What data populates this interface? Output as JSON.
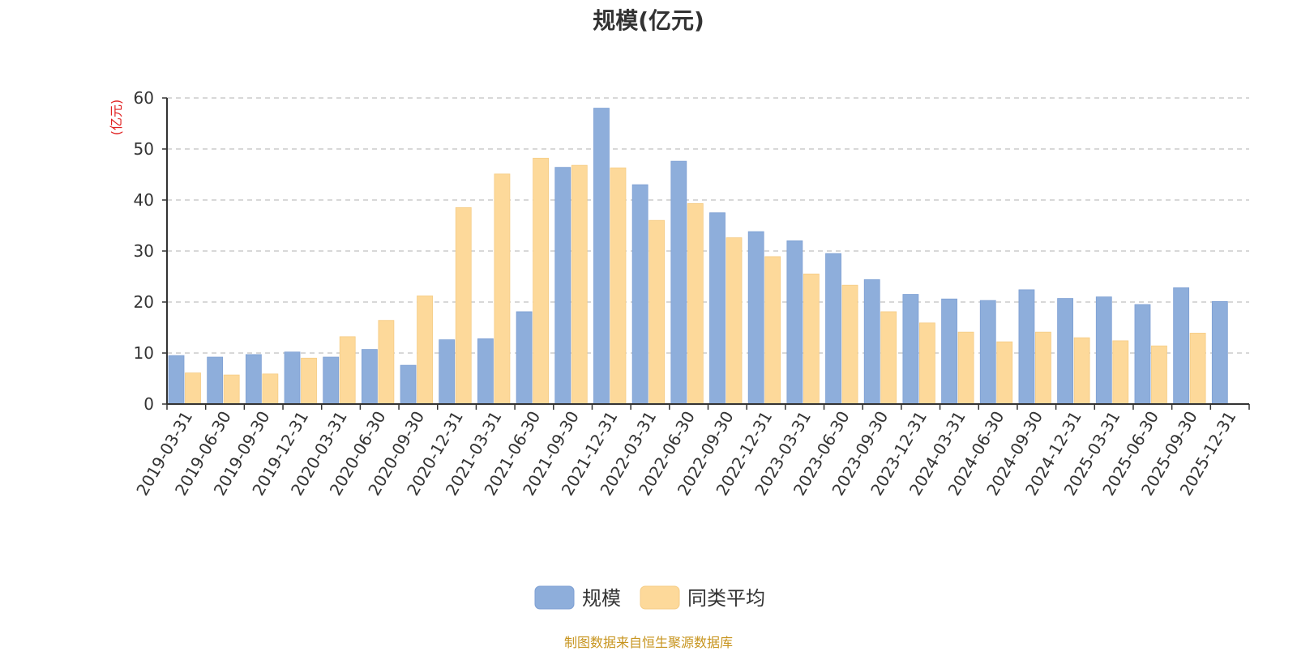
{
  "chart_data": {
    "type": "bar",
    "title": "规模(亿元)",
    "ylabel": "(亿元)",
    "xlabel": "",
    "ylim": [
      0,
      60
    ],
    "yticks": [
      0,
      10,
      20,
      30,
      40,
      50,
      60
    ],
    "grid": true,
    "legend_position": "bottom-center",
    "categories": [
      "2019-03-31",
      "2019-06-30",
      "2019-09-30",
      "2019-12-31",
      "2020-03-31",
      "2020-06-30",
      "2020-09-30",
      "2020-12-31",
      "2021-03-31",
      "2021-06-30",
      "2021-09-30",
      "2021-12-31",
      "2022-03-31",
      "2022-06-30",
      "2022-09-30",
      "2022-12-31",
      "2023-03-31",
      "2023-06-30",
      "2023-09-30",
      "2023-12-31",
      "2024-03-31",
      "2024-06-30",
      "2024-09-30",
      "2024-12-31",
      "2025-03-31",
      "2025-06-30",
      "2025-09-30",
      "2025-12-31"
    ],
    "series": [
      {
        "name": "规模",
        "color": "#8eaedb",
        "values": [
          9.5,
          9.2,
          9.7,
          10.2,
          9.2,
          10.7,
          7.6,
          12.6,
          12.8,
          18.1,
          46.4,
          58.0,
          43.0,
          47.6,
          37.5,
          33.8,
          32.0,
          29.5,
          24.4,
          21.5,
          20.6,
          20.3,
          22.4,
          20.7,
          21.0,
          19.5,
          22.8,
          20.1
        ]
      },
      {
        "name": "同类平均",
        "color": "#fdd99a",
        "values": [
          6.1,
          5.7,
          5.9,
          9.0,
          13.2,
          16.4,
          21.2,
          38.5,
          45.1,
          48.2,
          46.8,
          46.3,
          36.0,
          39.3,
          32.6,
          28.9,
          25.5,
          23.3,
          18.1,
          15.9,
          14.1,
          12.2,
          14.1,
          13.0,
          12.4,
          11.4,
          13.9,
          null
        ]
      }
    ]
  },
  "colors": {
    "unit_label": "#e02020",
    "axis": "#333333",
    "grid": "#cccccc",
    "source_note": "#c7941e"
  },
  "footer": {
    "source": "制图数据来自恒生聚源数据库"
  }
}
